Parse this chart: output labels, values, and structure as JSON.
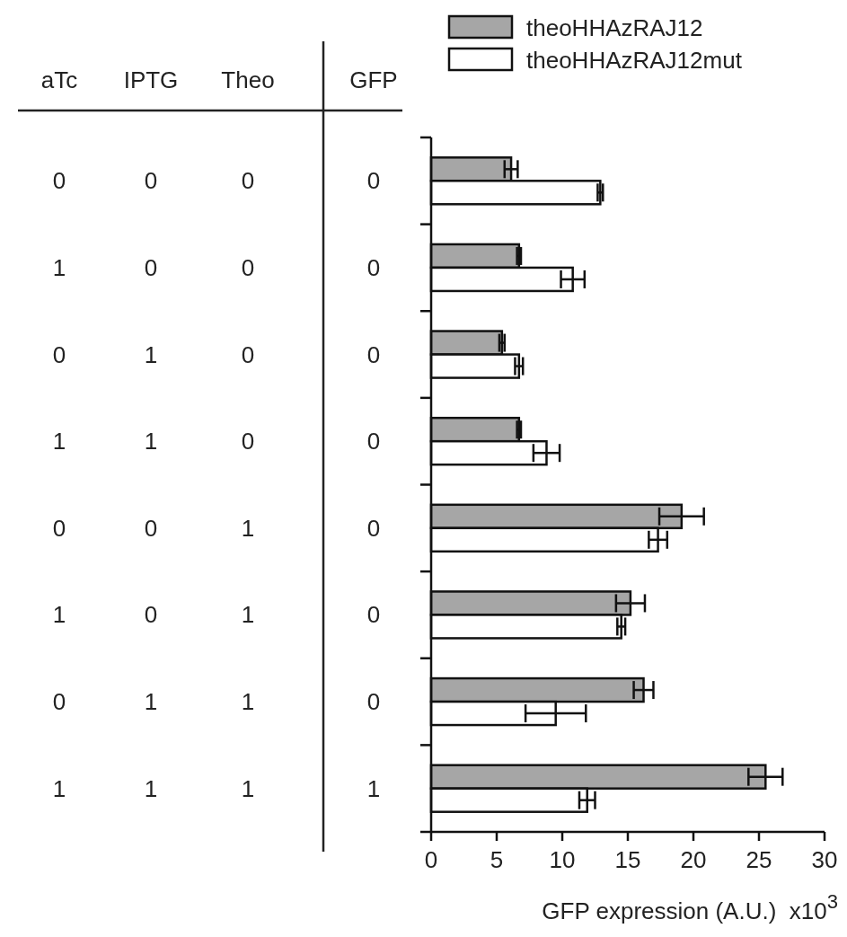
{
  "chart_data": [
    {
      "type": "other",
      "categories": [
        "aTc",
        "IPTG",
        "Theo",
        "GFP"
      ],
      "cell_labels": [
        [
          "0",
          "0",
          "0",
          "0"
        ],
        [
          "1",
          "0",
          "0",
          "0"
        ],
        [
          "0",
          "1",
          "0",
          "0"
        ],
        [
          "1",
          "1",
          "0",
          "0"
        ],
        [
          "0",
          "0",
          "1",
          "0"
        ],
        [
          "1",
          "0",
          "1",
          "0"
        ],
        [
          "0",
          "1",
          "1",
          "0"
        ],
        [
          "1",
          "1",
          "1",
          "1"
        ]
      ]
    },
    {
      "type": "bar",
      "orientation": "horizontal",
      "categories": [
        null,
        null,
        null,
        null,
        null,
        null,
        null,
        null
      ],
      "series": [
        {
          "name": "theoHHAzRAJ12",
          "color": "#a6a6a6",
          "values": [
            6.1,
            6.7,
            5.4,
            6.7,
            19.1,
            15.2,
            16.2,
            25.5
          ],
          "errors": [
            0.5,
            0.15,
            0.2,
            0.15,
            1.7,
            1.1,
            0.75,
            1.3
          ]
        },
        {
          "name": "theoHHAzRAJ12mut",
          "color": "#ffffff",
          "values": [
            12.9,
            10.8,
            6.7,
            8.8,
            17.3,
            14.5,
            9.5,
            11.9
          ],
          "errors": [
            0.2,
            0.9,
            0.3,
            1.0,
            0.7,
            0.3,
            2.3,
            0.6
          ]
        }
      ],
      "xlim": [
        0,
        30
      ],
      "xticks": [
        0,
        5,
        10,
        15,
        20,
        25,
        30
      ],
      "xlabel": "GFP expression (A.U.)  x10$^{3}$",
      "legend": "top",
      "grid": false
    }
  ]
}
